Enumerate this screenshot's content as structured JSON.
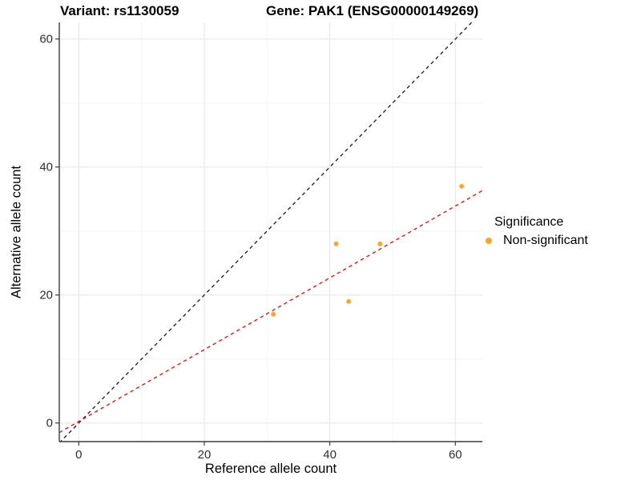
{
  "titles": {
    "variant": "Variant: rs1130059",
    "gene": "Gene: PAK1 (ENSG00000149269)"
  },
  "chart_data": {
    "type": "scatter",
    "title": "Variant: rs1130059  /  Gene: PAK1 (ENSG00000149269)",
    "xlabel": "Reference allele count",
    "ylabel": "Alternative allele count",
    "xlim": [
      -3.1,
      64.3
    ],
    "ylim": [
      -2.9,
      62.6
    ],
    "x_ticks": [
      0,
      20,
      40,
      60
    ],
    "y_ticks": [
      0,
      20,
      40,
      60
    ],
    "x_minor_ticks": [
      10,
      30,
      50
    ],
    "y_minor_ticks": [
      10,
      30,
      50
    ],
    "grid": true,
    "series": [
      {
        "name": "Non-significant",
        "color": "#FFA428",
        "points": [
          [
            31,
            17
          ],
          [
            41,
            28
          ],
          [
            43,
            19
          ],
          [
            48,
            28
          ],
          [
            61,
            37
          ]
        ]
      }
    ],
    "lines": [
      {
        "name": "identity-line",
        "slope": 1.0,
        "intercept": 0.0,
        "color": "#1a1a1a",
        "style": "dashed"
      },
      {
        "name": "fit-line",
        "slope": 0.561,
        "intercept": 0.25,
        "color": "#ff0000",
        "style": "dashed"
      }
    ],
    "legend": {
      "position": "right",
      "title": "Significance",
      "entries": [
        {
          "label": "Non-significant",
          "color": "#FFA428"
        }
      ]
    },
    "colors": {
      "grid_major": "#e6e6e6",
      "grid_minor": "#f2f2f2",
      "axis_line": "#3c3c3c",
      "tick_text": "#303030"
    }
  }
}
